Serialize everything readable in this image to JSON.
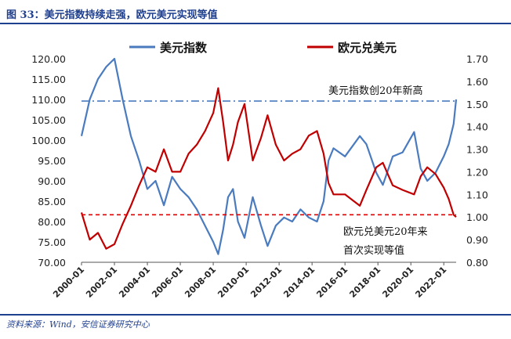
{
  "title": "图 33：美元指数持续走强，欧元美元实现等值",
  "source": "资料来源：Wind，安信证券研究中心",
  "chart_data": {
    "type": "line",
    "title": "图 33：美元指数持续走强，欧元美元实现等值",
    "x_range": [
      2000.0,
      2022.75
    ],
    "xticks": [
      "2000-01",
      "2002-01",
      "2004-01",
      "2006-01",
      "2008-01",
      "2010-01",
      "2012-01",
      "2014-01",
      "2016-01",
      "2018-01",
      "2020-01",
      "2022-01"
    ],
    "y_left": {
      "ticks": [
        "70.00",
        "75.00",
        "80.00",
        "85.00",
        "90.00",
        "95.00",
        "100.00",
        "105.00",
        "110.00",
        "115.00",
        "120.00"
      ],
      "ylim": [
        70,
        120
      ]
    },
    "y_right": {
      "ticks": [
        "0.80",
        "0.90",
        "1.00",
        "1.10",
        "1.20",
        "1.30",
        "1.40",
        "1.50",
        "1.60",
        "1.70"
      ],
      "ylim": [
        0.8,
        1.7
      ]
    },
    "colors": {
      "usd": "#4a7bbf",
      "eur": "#c00000"
    },
    "legend": [
      "美元指数",
      "欧元兑美元"
    ],
    "series": [
      {
        "name": "美元指数",
        "axis": "left",
        "color": "#4a7bbf",
        "x": [
          2000.0,
          2000.5,
          2001.0,
          2001.5,
          2002.0,
          2002.5,
          2003.0,
          2003.5,
          2004.0,
          2004.5,
          2005.0,
          2005.5,
          2006.0,
          2006.5,
          2007.0,
          2007.5,
          2008.0,
          2008.3,
          2008.6,
          2008.9,
          2009.2,
          2009.5,
          2009.9,
          2010.4,
          2010.9,
          2011.3,
          2011.8,
          2012.3,
          2012.8,
          2013.3,
          2013.8,
          2014.3,
          2014.7,
          2015.0,
          2015.3,
          2016.0,
          2016.9,
          2017.3,
          2017.9,
          2018.3,
          2018.9,
          2019.5,
          2020.2,
          2020.6,
          2021.0,
          2021.5,
          2022.0,
          2022.3,
          2022.6,
          2022.75
        ],
        "values": [
          101,
          110,
          115,
          118,
          120,
          110,
          101,
          95,
          88,
          90,
          84,
          91,
          88,
          86,
          83,
          79,
          75,
          72,
          78,
          86,
          88,
          80,
          76,
          86,
          79,
          74,
          79,
          81,
          80,
          83,
          81,
          80,
          85,
          95,
          98,
          96,
          101,
          99,
          92,
          89,
          96,
          97,
          102,
          93,
          90,
          92,
          96,
          99,
          104,
          110
        ]
      },
      {
        "name": "欧元兑美元",
        "axis": "right",
        "color": "#c00000",
        "x": [
          2000.0,
          2000.5,
          2001.0,
          2001.5,
          2002.0,
          2002.5,
          2003.0,
          2003.5,
          2004.0,
          2004.5,
          2005.0,
          2005.5,
          2006.0,
          2006.5,
          2007.0,
          2007.5,
          2008.0,
          2008.3,
          2008.6,
          2008.9,
          2009.2,
          2009.5,
          2009.9,
          2010.4,
          2010.9,
          2011.3,
          2011.8,
          2012.3,
          2012.8,
          2013.3,
          2013.8,
          2014.3,
          2014.7,
          2015.0,
          2015.3,
          2016.0,
          2016.9,
          2017.3,
          2017.9,
          2018.3,
          2018.9,
          2019.5,
          2020.2,
          2020.6,
          2021.0,
          2021.5,
          2022.0,
          2022.3,
          2022.6,
          2022.75
        ],
        "values": [
          1.02,
          0.9,
          0.93,
          0.86,
          0.88,
          0.97,
          1.05,
          1.14,
          1.22,
          1.2,
          1.3,
          1.2,
          1.2,
          1.28,
          1.32,
          1.38,
          1.46,
          1.57,
          1.42,
          1.25,
          1.32,
          1.42,
          1.5,
          1.25,
          1.35,
          1.45,
          1.32,
          1.25,
          1.28,
          1.3,
          1.36,
          1.38,
          1.28,
          1.15,
          1.1,
          1.1,
          1.05,
          1.12,
          1.22,
          1.24,
          1.14,
          1.12,
          1.1,
          1.18,
          1.22,
          1.19,
          1.13,
          1.08,
          1.01,
          1.0
        ]
      }
    ],
    "reference_lines": [
      {
        "axis": "left",
        "value": 109.6,
        "style": "dash-dot",
        "color": "#4a7bbf"
      },
      {
        "axis": "right",
        "value": 1.01,
        "style": "dashed",
        "color": "#e00000"
      }
    ],
    "annotations": [
      "美元指数创20年新高",
      "欧元兑美元20年来",
      "首次实现等值"
    ]
  }
}
